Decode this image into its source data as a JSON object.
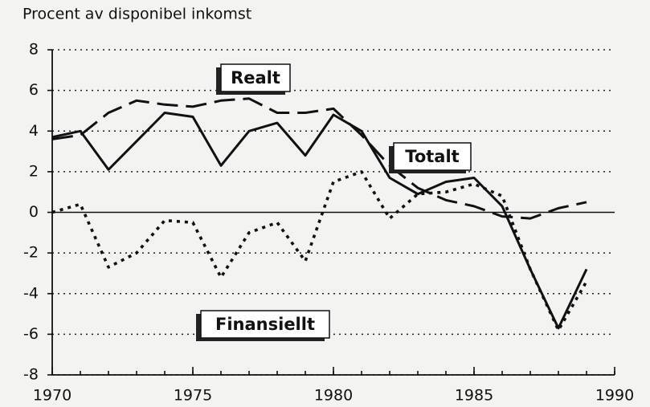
{
  "chart_data": {
    "type": "line",
    "y_label": "Procent av disponibel inkomst",
    "x": [
      1970,
      1971,
      1972,
      1973,
      1974,
      1975,
      1976,
      1977,
      1978,
      1979,
      1980,
      1981,
      1982,
      1983,
      1984,
      1985,
      1986,
      1987,
      1988,
      1989
    ],
    "series": [
      {
        "name": "Totalt",
        "color": "#111111",
        "style": "solid",
        "values": [
          3.7,
          4.0,
          2.1,
          3.5,
          4.9,
          4.7,
          2.3,
          4.0,
          4.4,
          2.8,
          4.8,
          4.0,
          1.7,
          0.9,
          1.5,
          1.7,
          0.3,
          -2.8,
          -5.7,
          -2.8
        ]
      },
      {
        "name": "Realt",
        "color": "#111111",
        "style": "dashed",
        "values": [
          3.6,
          3.8,
          4.9,
          5.5,
          5.3,
          5.2,
          5.5,
          5.6,
          4.9,
          4.9,
          5.1,
          3.8,
          2.3,
          1.2,
          0.6,
          0.3,
          -0.2,
          -0.3,
          0.2,
          0.5
        ]
      },
      {
        "name": "Finansiellt",
        "color": "#111111",
        "style": "dotted",
        "values": [
          0.0,
          0.4,
          -2.7,
          -2.0,
          -0.4,
          -0.5,
          -3.2,
          -1.0,
          -0.5,
          -2.4,
          1.5,
          2.0,
          -0.3,
          0.9,
          1.0,
          1.4,
          0.8,
          -2.8,
          -5.8,
          -3.4
        ]
      }
    ],
    "xlim": [
      1970,
      1990
    ],
    "xticks": [
      1970,
      1975,
      1980,
      1985,
      1990
    ],
    "ylim": [
      -8,
      8
    ],
    "yticks": [
      -8,
      -6,
      -4,
      -2,
      0,
      2,
      4,
      6,
      8
    ],
    "grid": true
  }
}
